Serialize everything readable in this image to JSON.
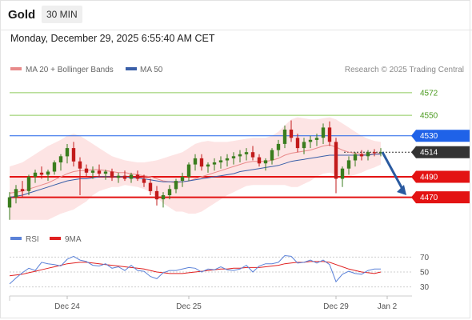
{
  "header": {
    "symbol": "Gold",
    "interval": "30 MIN"
  },
  "timestamp": "Monday, December 29, 2025 6:55:40 AM CET",
  "legend": {
    "bb_label": "MA 20 + Bollinger Bands",
    "ma50_label": "MA 50",
    "rsi_label": "RSI",
    "ma9_label": "9MA",
    "source": "Research © 2025 Trading Central"
  },
  "colors": {
    "bull": "#3a7d1e",
    "bear": "#c21b1b",
    "bb_fill": "#fde4e4",
    "ma20": "#e88a8a",
    "ma50": "#3a5fa8",
    "resistance": "#8ecb5c",
    "pivot": "#1f62e8",
    "support": "#e31313",
    "current": "#333333",
    "arrow": "#2a5aa0",
    "rsi": "#5b82d8",
    "rsi_ma": "#e02020"
  },
  "chart_data": {
    "type": "candlestick",
    "ylim": [
      4440,
      4600
    ],
    "x_ticks": [
      {
        "label": "Dec 24",
        "index": 9
      },
      {
        "label": "Dec 25",
        "index": 28
      },
      {
        "label": "Dec 29",
        "index": 51
      },
      {
        "label": "Jan 2",
        "index": 59
      }
    ],
    "levels": [
      {
        "value": 4572,
        "label": "4572",
        "kind": "resistance"
      },
      {
        "value": 4550,
        "label": "4550",
        "kind": "resistance"
      },
      {
        "value": 4530,
        "label": "4530",
        "kind": "pivot"
      },
      {
        "value": 4514,
        "label": "4514",
        "kind": "current"
      },
      {
        "value": 4490,
        "label": "4490",
        "kind": "support"
      },
      {
        "value": 4470,
        "label": "4470",
        "kind": "support"
      }
    ],
    "ohlc": [
      [
        4460,
        4475,
        4448,
        4470
      ],
      [
        4470,
        4482,
        4464,
        4478
      ],
      [
        4478,
        4486,
        4470,
        4476
      ],
      [
        4476,
        4492,
        4472,
        4490
      ],
      [
        4490,
        4497,
        4484,
        4494
      ],
      [
        4494,
        4500,
        4488,
        4492
      ],
      [
        4492,
        4497,
        4486,
        4495
      ],
      [
        4495,
        4506,
        4492,
        4504
      ],
      [
        4504,
        4512,
        4496,
        4510
      ],
      [
        4510,
        4522,
        4503,
        4518
      ],
      [
        4518,
        4524,
        4500,
        4505
      ],
      [
        4505,
        4509,
        4472,
        4498
      ],
      [
        4498,
        4502,
        4490,
        4494
      ],
      [
        4494,
        4500,
        4488,
        4496
      ],
      [
        4496,
        4502,
        4490,
        4493
      ],
      [
        4493,
        4497,
        4487,
        4495
      ],
      [
        4495,
        4498,
        4486,
        4489
      ],
      [
        4489,
        4494,
        4484,
        4491
      ],
      [
        4491,
        4496,
        4486,
        4488
      ],
      [
        4488,
        4494,
        4484,
        4492
      ],
      [
        4492,
        4496,
        4486,
        4488
      ],
      [
        4488,
        4492,
        4480,
        4484
      ],
      [
        4484,
        4488,
        4472,
        4476
      ],
      [
        4476,
        4481,
        4462,
        4468
      ],
      [
        4468,
        4475,
        4460,
        4472
      ],
      [
        4472,
        4482,
        4468,
        4478
      ],
      [
        4478,
        4488,
        4474,
        4486
      ],
      [
        4486,
        4494,
        4480,
        4490
      ],
      [
        4490,
        4504,
        4486,
        4502
      ],
      [
        4502,
        4512,
        4496,
        4508
      ],
      [
        4508,
        4512,
        4496,
        4500
      ],
      [
        4500,
        4504,
        4494,
        4502
      ],
      [
        4502,
        4508,
        4496,
        4504
      ],
      [
        4504,
        4510,
        4498,
        4506
      ],
      [
        4506,
        4512,
        4500,
        4508
      ],
      [
        4508,
        4514,
        4502,
        4510
      ],
      [
        4510,
        4516,
        4504,
        4512
      ],
      [
        4512,
        4518,
        4506,
        4514
      ],
      [
        4514,
        4520,
        4506,
        4509
      ],
      [
        4509,
        4512,
        4500,
        4503
      ],
      [
        4503,
        4508,
        4496,
        4506
      ],
      [
        4506,
        4518,
        4502,
        4516
      ],
      [
        4516,
        4526,
        4510,
        4522
      ],
      [
        4522,
        4540,
        4518,
        4536
      ],
      [
        4536,
        4545,
        4524,
        4528
      ],
      [
        4528,
        4532,
        4514,
        4518
      ],
      [
        4518,
        4528,
        4512,
        4524
      ],
      [
        4524,
        4530,
        4518,
        4526
      ],
      [
        4526,
        4532,
        4520,
        4528
      ],
      [
        4528,
        4542,
        4522,
        4538
      ],
      [
        4538,
        4544,
        4520,
        4524
      ],
      [
        4524,
        4528,
        4474,
        4488
      ],
      [
        4488,
        4500,
        4480,
        4498
      ],
      [
        4498,
        4510,
        4492,
        4506
      ],
      [
        4506,
        4514,
        4500,
        4512
      ],
      [
        4512,
        4516,
        4506,
        4510
      ],
      [
        4510,
        4516,
        4506,
        4514
      ],
      [
        4514,
        4517,
        4510,
        4513
      ],
      [
        4513,
        4518,
        4510,
        4514
      ]
    ],
    "ma20": [
      4474,
      4475,
      4476,
      4478,
      4480,
      4482,
      4484,
      4487,
      4490,
      4493,
      4495,
      4496,
      4496,
      4497,
      4497,
      4496,
      4495,
      4494,
      4494,
      4493,
      4492,
      4491,
      4490,
      4488,
      4486,
      4485,
      4484,
      4485,
      4486,
      4488,
      4490,
      4492,
      4494,
      4496,
      4498,
      4500,
      4502,
      4504,
      4505,
      4505,
      4505,
      4506,
      4508,
      4511,
      4513,
      4514,
      4515,
      4516,
      4518,
      4520,
      4521,
      4519,
      4516,
      4514,
      4513,
      4512,
      4512,
      4512,
      4513
    ],
    "ma50": [
      4470,
      4471,
      4472,
      4474,
      4476,
      4478,
      4480,
      4482,
      4484,
      4486,
      4487,
      4488,
      4488,
      4489,
      4490,
      4490,
      4490,
      4490,
      4490,
      4489,
      4489,
      4488,
      4487,
      4486,
      4485,
      4485,
      4485,
      4485,
      4486,
      4487,
      4488,
      4489,
      4490,
      4491,
      4492,
      4493,
      4495,
      4496,
      4497,
      4498,
      4499,
      4500,
      4501,
      4503,
      4505,
      4506,
      4507,
      4508,
      4509,
      4510,
      4511,
      4511,
      4511,
      4511,
      4511,
      4511,
      4511,
      4512,
      4512
    ],
    "bb_upper": [
      4500,
      4502,
      4504,
      4508,
      4512,
      4516,
      4520,
      4523,
      4526,
      4530,
      4532,
      4530,
      4526,
      4522,
      4518,
      4514,
      4510,
      4508,
      4506,
      4505,
      4504,
      4504,
      4505,
      4506,
      4508,
      4510,
      4512,
      4514,
      4518,
      4522,
      4524,
      4525,
      4524,
      4524,
      4524,
      4525,
      4526,
      4527,
      4528,
      4528,
      4528,
      4530,
      4534,
      4540,
      4546,
      4548,
      4547,
      4546,
      4546,
      4547,
      4548,
      4546,
      4542,
      4538,
      4534,
      4530,
      4527,
      4525,
      4524
    ],
    "bb_lower": [
      4448,
      4448,
      4448,
      4448,
      4448,
      4448,
      4448,
      4451,
      4454,
      4456,
      4458,
      4462,
      4466,
      4472,
      4476,
      4478,
      4480,
      4480,
      4482,
      4481,
      4480,
      4478,
      4475,
      4470,
      4464,
      4460,
      4456,
      4456,
      4454,
      4454,
      4456,
      4460,
      4464,
      4468,
      4472,
      4475,
      4478,
      4481,
      4482,
      4482,
      4482,
      4482,
      4482,
      4482,
      4480,
      4480,
      4483,
      4486,
      4490,
      4493,
      4494,
      4492,
      4490,
      4490,
      4492,
      4494,
      4497,
      4499,
      4502
    ],
    "rsi": [
      34,
      42,
      49,
      55,
      52,
      63,
      61,
      60,
      58,
      67,
      71,
      66,
      64,
      59,
      58,
      61,
      55,
      57,
      52,
      59,
      52,
      51,
      44,
      41,
      49,
      52,
      52,
      54,
      56,
      55,
      50,
      54,
      53,
      57,
      53,
      52,
      54,
      59,
      50,
      58,
      61,
      61,
      63,
      72,
      71,
      62,
      63,
      66,
      62,
      66,
      60,
      37,
      47,
      51,
      48,
      47,
      52,
      54,
      54
    ],
    "rsi_ma": [
      45,
      46,
      47,
      49,
      51,
      53,
      55,
      57,
      59,
      61,
      62,
      63,
      63,
      62,
      61,
      60,
      59,
      58,
      57,
      56,
      55,
      54,
      52,
      50,
      49,
      48,
      48,
      48,
      49,
      50,
      51,
      52,
      53,
      54,
      54,
      55,
      55,
      56,
      56,
      56,
      57,
      58,
      59,
      61,
      62,
      63,
      63,
      64,
      64,
      64,
      63,
      60,
      57,
      54,
      52,
      50,
      49,
      48,
      50
    ]
  }
}
